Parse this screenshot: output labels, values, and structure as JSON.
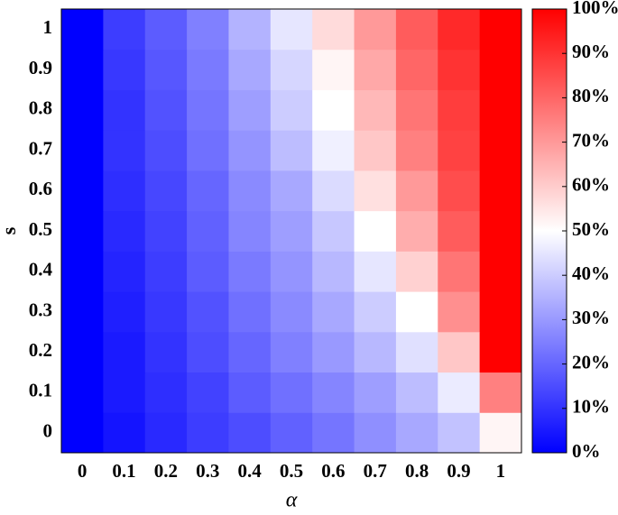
{
  "chart_data": {
    "type": "heatmap",
    "x_label": "α",
    "y_label": "s",
    "x": [
      0,
      0.1,
      0.2,
      0.3,
      0.4,
      0.5,
      0.6,
      0.7,
      0.8,
      0.9,
      1
    ],
    "y": [
      0,
      0.1,
      0.2,
      0.3,
      0.4,
      0.5,
      0.6,
      0.7,
      0.8,
      0.9,
      1
    ],
    "values": [
      [
        0,
        4,
        8,
        12,
        15,
        19,
        23,
        28,
        33,
        38,
        52
      ],
      [
        0,
        5,
        9,
        13,
        18,
        22,
        26,
        31,
        37,
        46,
        75
      ],
      [
        0,
        5,
        10,
        15,
        20,
        25,
        30,
        36,
        44,
        61,
        100
      ],
      [
        0,
        6,
        11,
        16,
        22,
        27,
        33,
        40,
        50,
        72,
        100
      ],
      [
        0,
        7,
        12,
        18,
        24,
        29,
        36,
        45,
        59,
        77,
        100
      ],
      [
        0,
        8,
        13,
        19,
        26,
        31,
        39,
        50,
        66,
        82,
        100
      ],
      [
        0,
        9,
        14,
        20,
        27,
        33,
        43,
        56,
        70,
        85,
        100
      ],
      [
        0,
        10,
        15,
        22,
        29,
        37,
        47,
        61,
        75,
        87,
        100
      ],
      [
        0,
        10,
        16,
        23,
        31,
        40,
        50,
        64,
        77,
        88,
        100
      ],
      [
        0,
        11,
        17,
        24,
        33,
        42,
        52,
        67,
        80,
        90,
        100
      ],
      [
        0,
        12,
        18,
        25,
        35,
        45,
        57,
        70,
        82,
        92,
        100
      ]
    ],
    "colormap": [
      "#0000ff",
      "#ffffff",
      "#ff0000"
    ],
    "zlim": [
      0,
      100
    ],
    "zticks": [
      {
        "value": 0,
        "label": "0%"
      },
      {
        "value": 10,
        "label": "10%"
      },
      {
        "value": 20,
        "label": "20%"
      },
      {
        "value": 30,
        "label": "30%"
      },
      {
        "value": 40,
        "label": "40%"
      },
      {
        "value": 50,
        "label": "50%"
      },
      {
        "value": 60,
        "label": "60%"
      },
      {
        "value": 70,
        "label": "70%"
      },
      {
        "value": 80,
        "label": "80%"
      },
      {
        "value": 90,
        "label": "90%"
      },
      {
        "value": 100,
        "label": "100%"
      }
    ]
  }
}
